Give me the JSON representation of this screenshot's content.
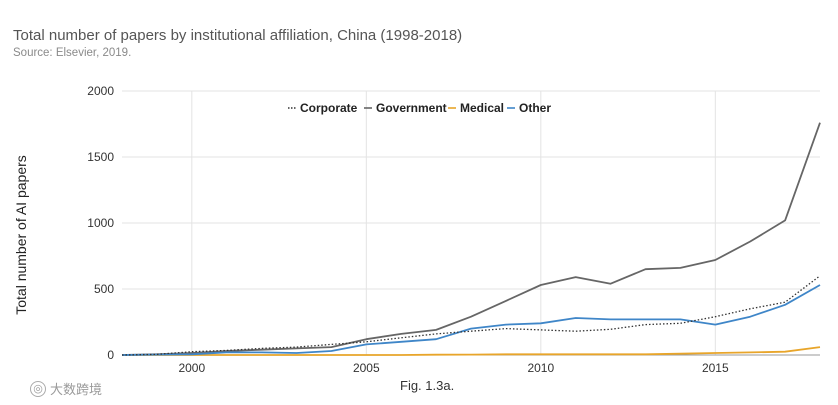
{
  "header": {
    "title": "Total number of papers by institutional affiliation, China (1998-2018)",
    "source": "Source: Elsevier, 2019."
  },
  "caption": "Fig. 1.3a.",
  "watermark": "大数跨境",
  "colors": {
    "corporate": "#333333",
    "government": "#666666",
    "medical": "#e8a52a",
    "other": "#3f86c8",
    "grid": "#e3e3e3"
  },
  "chart_data": {
    "type": "line",
    "title": "Total number of papers by institutional affiliation, China (1998-2018)",
    "xlabel": "",
    "ylabel": "Total number of AI papers",
    "xlim": [
      1998,
      2018
    ],
    "ylim": [
      0,
      2000
    ],
    "x_ticks": [
      2000,
      2005,
      2010,
      2015
    ],
    "y_ticks": [
      0,
      500,
      1000,
      1500,
      2000
    ],
    "legend_position": "top-center",
    "x": [
      1998,
      1999,
      2000,
      2001,
      2002,
      2003,
      2004,
      2005,
      2006,
      2007,
      2008,
      2009,
      2010,
      2011,
      2012,
      2013,
      2014,
      2015,
      2016,
      2017,
      2018
    ],
    "series": [
      {
        "name": "Corporate",
        "style": "dotted",
        "color_key": "corporate",
        "values": [
          0,
          5,
          25,
          35,
          50,
          60,
          80,
          100,
          130,
          160,
          180,
          200,
          190,
          180,
          195,
          230,
          240,
          290,
          350,
          400,
          600
        ]
      },
      {
        "name": "Government",
        "style": "solid",
        "color_key": "government",
        "values": [
          0,
          5,
          15,
          30,
          40,
          50,
          60,
          120,
          160,
          190,
          290,
          410,
          530,
          590,
          540,
          650,
          660,
          720,
          860,
          1020,
          1760
        ]
      },
      {
        "name": "Medical",
        "style": "solid",
        "color_key": "medical",
        "values": [
          0,
          0,
          0,
          0,
          0,
          0,
          0,
          0,
          0,
          2,
          3,
          5,
          5,
          5,
          5,
          5,
          10,
          15,
          20,
          25,
          60
        ]
      },
      {
        "name": "Other",
        "style": "solid",
        "color_key": "other",
        "values": [
          0,
          3,
          5,
          20,
          20,
          15,
          30,
          80,
          100,
          120,
          200,
          230,
          240,
          280,
          270,
          270,
          270,
          230,
          290,
          380,
          530
        ]
      }
    ]
  }
}
